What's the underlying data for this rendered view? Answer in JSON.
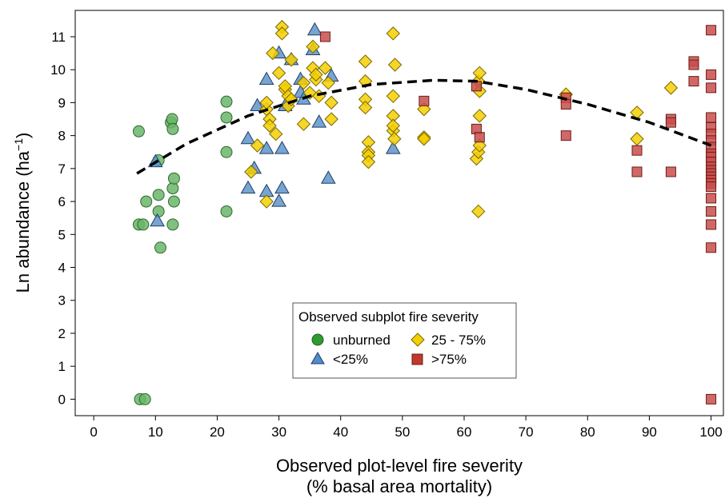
{
  "chart_data": {
    "type": "scatter",
    "xlabel_line1": "Observed plot-level fire severity",
    "xlabel_line2": "(% basal area mortality)",
    "ylabel_main": "Ln abundance (ha",
    "ylabel_sup": "−1",
    "ylabel_close": ")",
    "xlim": [
      -3,
      102
    ],
    "ylim": [
      -0.5,
      11.8
    ],
    "xticks": [
      0,
      10,
      20,
      30,
      40,
      50,
      60,
      70,
      80,
      90,
      100
    ],
    "yticks": [
      0,
      1,
      2,
      3,
      4,
      5,
      6,
      7,
      8,
      9,
      10,
      11
    ],
    "legend": {
      "title": "Observed subplot fire severity",
      "placement": "lower-center",
      "entries": [
        "unburned",
        "25 - 75%",
        "<25%",
        ">75%"
      ]
    },
    "series": [
      {
        "name": "unburned",
        "marker": "circle",
        "color": "#6ab56a",
        "points": [
          [
            7.3,
            8.13
          ],
          [
            7.3,
            5.3
          ],
          [
            8,
            5.3
          ],
          [
            7.5,
            0
          ],
          [
            8.3,
            0
          ],
          [
            8.5,
            6
          ],
          [
            10.5,
            7.25
          ],
          [
            10.5,
            6.2
          ],
          [
            10.5,
            5.7
          ],
          [
            10.8,
            4.6
          ],
          [
            12.5,
            8.4
          ],
          [
            12.7,
            8.5
          ],
          [
            12.8,
            8.2
          ],
          [
            12.8,
            6.4
          ],
          [
            12.8,
            5.3
          ],
          [
            13,
            6
          ],
          [
            13,
            6.7
          ],
          [
            21.5,
            9.03
          ],
          [
            21.5,
            8.55
          ],
          [
            21.5,
            7.5
          ],
          [
            21.5,
            5.7
          ]
        ]
      },
      {
        "name": "<25%",
        "marker": "triangle",
        "color": "#5f94c9",
        "points": [
          [
            10,
            7.2
          ],
          [
            10.3,
            5.4
          ],
          [
            25,
            7.9
          ],
          [
            25,
            6.4
          ],
          [
            26,
            7
          ],
          [
            26.5,
            8.9
          ],
          [
            28,
            9.7
          ],
          [
            28,
            7.6
          ],
          [
            28,
            6.3
          ],
          [
            30,
            10.5
          ],
          [
            30,
            6
          ],
          [
            30.5,
            7.6
          ],
          [
            30.5,
            6.4
          ],
          [
            31,
            8.9
          ],
          [
            32,
            10.3
          ],
          [
            33.5,
            9.3
          ],
          [
            33.5,
            9.7
          ],
          [
            34,
            9.1
          ],
          [
            35.5,
            10.6
          ],
          [
            35.8,
            11.2
          ],
          [
            36.5,
            8.4
          ],
          [
            38,
            6.7
          ],
          [
            38.5,
            9.8
          ],
          [
            48.5,
            7.6
          ]
        ]
      },
      {
        "name": "25 - 75%",
        "marker": "diamond",
        "color": "#f5cf00",
        "points": [
          [
            25.5,
            6.9
          ],
          [
            26.5,
            7.7
          ],
          [
            28,
            6
          ],
          [
            28,
            8.8
          ],
          [
            28,
            9
          ],
          [
            28.5,
            8.5
          ],
          [
            28.5,
            8.3
          ],
          [
            29,
            10.5
          ],
          [
            29.5,
            8.05
          ],
          [
            30,
            9.9
          ],
          [
            30.5,
            11.3
          ],
          [
            30.5,
            11.1
          ],
          [
            31,
            9.4
          ],
          [
            31,
            9.5
          ],
          [
            31.5,
            9.2
          ],
          [
            31.5,
            8.9
          ],
          [
            32,
            10.3
          ],
          [
            32,
            9.1
          ],
          [
            34,
            8.35
          ],
          [
            34,
            9.6
          ],
          [
            35,
            9.3
          ],
          [
            35.5,
            10.05
          ],
          [
            35.5,
            10.7
          ],
          [
            36,
            9.7
          ],
          [
            36,
            9.85
          ],
          [
            36.5,
            9.2
          ],
          [
            37.5,
            10.05
          ],
          [
            38,
            9.6
          ],
          [
            38.5,
            9
          ],
          [
            38.5,
            8.5
          ],
          [
            44,
            10.25
          ],
          [
            44,
            9.65
          ],
          [
            44,
            9.1
          ],
          [
            44,
            8.85
          ],
          [
            44.5,
            7.8
          ],
          [
            44.5,
            7.5
          ],
          [
            44.5,
            7.4
          ],
          [
            44.5,
            7.2
          ],
          [
            48.5,
            11.1
          ],
          [
            48.5,
            9.2
          ],
          [
            48.5,
            8.6
          ],
          [
            48.5,
            8.15
          ],
          [
            48.5,
            8.3
          ],
          [
            48.7,
            7.9
          ],
          [
            48.8,
            10.15
          ],
          [
            53.5,
            8.8
          ],
          [
            53.5,
            7.95
          ],
          [
            53.5,
            7.9
          ],
          [
            62.3,
            9.65
          ],
          [
            62.5,
            9.35
          ],
          [
            62,
            7.3
          ],
          [
            62.3,
            7.5
          ],
          [
            62.5,
            7.7
          ],
          [
            62.5,
            8.6
          ],
          [
            62.5,
            9.9
          ],
          [
            62.3,
            5.7
          ],
          [
            76.5,
            9.25
          ],
          [
            88,
            8.7
          ],
          [
            88,
            7.9
          ],
          [
            93.5,
            9.45
          ]
        ]
      },
      {
        "name": ">75%",
        "marker": "square",
        "color": "#c94e4e",
        "points": [
          [
            37.5,
            11
          ],
          [
            53.5,
            9.05
          ],
          [
            62,
            9.5
          ],
          [
            62,
            8.2
          ],
          [
            62.5,
            7.95
          ],
          [
            76.5,
            9.15
          ],
          [
            76.5,
            8.95
          ],
          [
            76.5,
            8
          ],
          [
            88,
            7.55
          ],
          [
            88,
            6.9
          ],
          [
            93.5,
            8.5
          ],
          [
            93.5,
            8.4
          ],
          [
            93.5,
            6.9
          ],
          [
            97.2,
            10.25
          ],
          [
            97.2,
            10.15
          ],
          [
            97.2,
            9.65
          ],
          [
            100,
            11.2
          ],
          [
            100,
            9.85
          ],
          [
            100,
            9.45
          ],
          [
            100,
            8.55
          ],
          [
            100,
            8.25
          ],
          [
            100,
            8.05
          ],
          [
            100,
            7.85
          ],
          [
            100,
            7.65
          ],
          [
            100,
            7.45
          ],
          [
            100,
            7.35
          ],
          [
            100,
            7.2
          ],
          [
            100,
            7.05
          ],
          [
            100,
            6.95
          ],
          [
            100,
            6.85
          ],
          [
            100,
            6.75
          ],
          [
            100,
            6.65
          ],
          [
            100,
            6.55
          ],
          [
            100,
            6.45
          ],
          [
            100,
            6.1
          ],
          [
            100,
            5.7
          ],
          [
            100,
            5.3
          ],
          [
            100,
            4.6
          ],
          [
            100,
            0
          ]
        ]
      }
    ],
    "trend": {
      "style": "dashed",
      "color": "#000000",
      "points": [
        [
          7,
          6.85
        ],
        [
          15,
          7.75
        ],
        [
          25,
          8.6
        ],
        [
          35,
          9.2
        ],
        [
          45,
          9.55
        ],
        [
          55,
          9.68
        ],
        [
          62,
          9.65
        ],
        [
          70,
          9.4
        ],
        [
          80,
          8.95
        ],
        [
          90,
          8.4
        ],
        [
          100,
          7.7
        ]
      ]
    }
  }
}
